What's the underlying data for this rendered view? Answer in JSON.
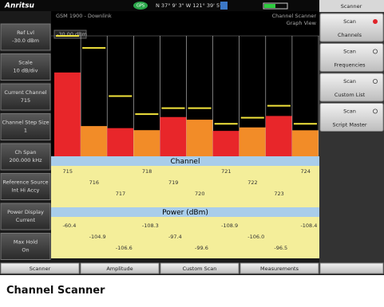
{
  "header": {
    "logo": "Anritsu",
    "gps": "GPS",
    "coords": "N 37° 9' 3\" W 121° 39' 5\""
  },
  "left_panel": [
    {
      "label": "Ref Lvl",
      "value": "-30.0 dBm"
    },
    {
      "label": "Scale",
      "value": "10 dB/div"
    },
    {
      "label": "Current Channel",
      "value": "715"
    },
    {
      "label": "Channel Step Size",
      "value": "1"
    },
    {
      "label": "Ch Span",
      "value": "200.000 kHz"
    },
    {
      "label": "Reference Source",
      "value": "Int Hi Accy"
    },
    {
      "label": "Power Display",
      "value": "Current"
    },
    {
      "label": "Max Hold",
      "value": "On"
    }
  ],
  "view": {
    "mode": "GSM 1900 - Downlink",
    "title": "Channel Scanner",
    "subtitle": "Graph View",
    "ref_label": "-30.00 dBm"
  },
  "channels": {
    "heading": "Channel",
    "values": [
      715,
      716,
      717,
      718,
      719,
      720,
      721,
      722,
      723,
      724
    ]
  },
  "power": {
    "heading": "Power (dBm)",
    "values": [
      -60.4,
      -104.9,
      -106.6,
      -108.3,
      -97.4,
      -99.6,
      -108.9,
      -106,
      -96.5,
      -108.4
    ],
    "value_labels": [
      "-60.4",
      "-104.9",
      "-106.6",
      "-108.3",
      "-97.4",
      "-99.6",
      "-108.9",
      "-106.0",
      "-96.5",
      "-108.4"
    ],
    "max_hold": [
      -30,
      -40,
      -80,
      -95,
      -90,
      -90,
      -103,
      -98,
      -88,
      -103
    ],
    "bar_colors": [
      "#e8262a",
      "#f28c28"
    ],
    "max_hold_color": "#f2e43c"
  },
  "right_panel": {
    "title": "Scanner",
    "buttons": [
      {
        "line1": "Scan",
        "line2": "Channels",
        "selected": true
      },
      {
        "line1": "Scan",
        "line2": "Frequencies",
        "selected": false
      },
      {
        "line1": "Scan",
        "line2": "Custom List",
        "selected": false
      },
      {
        "line1": "Scan",
        "line2": "Script Master",
        "selected": false
      }
    ]
  },
  "tabs": [
    "Scanner",
    "Amplitude",
    "Custom Scan",
    "Measurements"
  ],
  "caption": "Channel Scanner"
}
